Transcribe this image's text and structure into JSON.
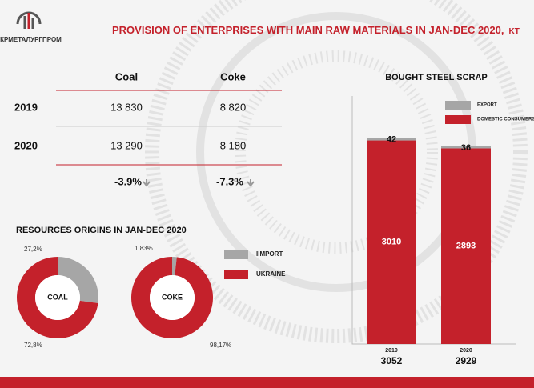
{
  "header": {
    "logo": "УКРМЕТАЛУРГПРОМ",
    "title": "PROVISION OF ENTERPRISES WITH MAIN RAW MATERIALS IN JAN-DEC 2020,",
    "unit": "KT"
  },
  "table": {
    "columns": [
      "Coal",
      "Coke"
    ],
    "rows": [
      [
        "2019",
        "13 830",
        "8 820"
      ],
      [
        "2020",
        "13 290",
        "8 180"
      ]
    ],
    "change": [
      "-3.9%",
      "-7.3%"
    ]
  },
  "origins": {
    "title": "RESOURCES ORIGINS IN JAN-DEC 2020",
    "legend": [
      {
        "name": "IIMPORT",
        "color": "#a6a6a6"
      },
      {
        "name": "UKRAINE",
        "color": "#c4212b"
      }
    ]
  },
  "chart_data": [
    {
      "type": "pie",
      "label": "COAL",
      "values": [
        27.2,
        72.8
      ],
      "value_labels": [
        "27,2%",
        "72,8%"
      ]
    },
    {
      "type": "pie",
      "label": "COKE",
      "values": [
        1.83,
        98.17
      ],
      "value_labels": [
        "1,83%",
        "98,17%"
      ]
    },
    {
      "type": "bar",
      "title": "BOUGHT STEEL SCRAP",
      "categories": [
        "2019",
        "2020"
      ],
      "series": [
        {
          "name": "EXPORT",
          "color": "#a6a6a6",
          "values": [
            42,
            36
          ]
        },
        {
          "name": "DOMESTIC CONSUMERS",
          "color": "#c4212b",
          "values": [
            3010,
            2893
          ]
        }
      ],
      "totals": [
        3052,
        2929
      ]
    }
  ]
}
